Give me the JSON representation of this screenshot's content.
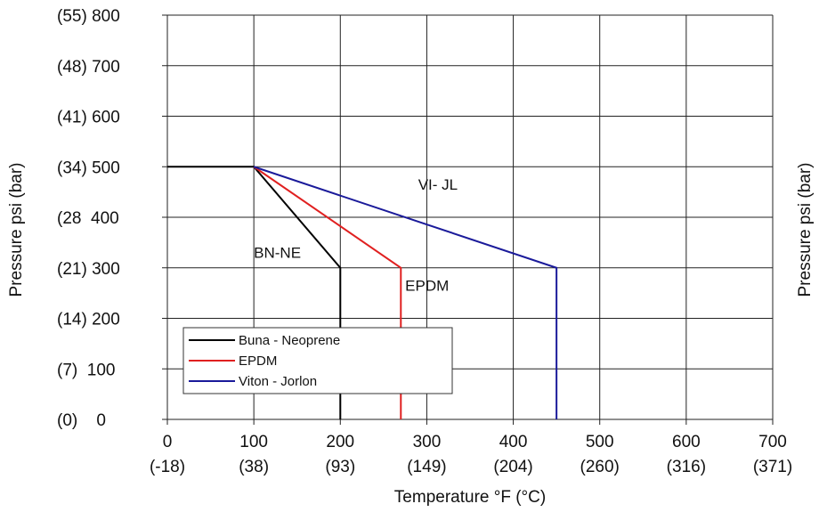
{
  "chart_data": {
    "type": "line",
    "xlabel": "Temperature °F (°C)",
    "ylabel": "Pressure psi (bar)",
    "xlim": [
      0,
      700
    ],
    "ylim": [
      0,
      800
    ],
    "x_ticks": [
      {
        "value": 0,
        "f": "0",
        "c": "(-18)"
      },
      {
        "value": 100,
        "f": "100",
        "c": "(38)"
      },
      {
        "value": 200,
        "f": "200",
        "c": "(93)"
      },
      {
        "value": 300,
        "f": "300",
        "c": "(149)"
      },
      {
        "value": 400,
        "f": "400",
        "c": "(204)"
      },
      {
        "value": 500,
        "f": "500",
        "c": "(260)"
      },
      {
        "value": 600,
        "f": "600",
        "c": "(316)"
      },
      {
        "value": 700,
        "f": "700",
        "c": "(371)"
      }
    ],
    "y_ticks": [
      {
        "value": 0,
        "label": "(0)    0"
      },
      {
        "value": 100,
        "label": "(7)  100"
      },
      {
        "value": 200,
        "label": "(14) 200"
      },
      {
        "value": 300,
        "label": "(21) 300"
      },
      {
        "value": 400,
        "label": "(28  400"
      },
      {
        "value": 500,
        "label": "(34) 500"
      },
      {
        "value": 600,
        "label": "(41) 600"
      },
      {
        "value": 700,
        "label": "(48) 700"
      },
      {
        "value": 800,
        "label": "(55) 800"
      }
    ],
    "grid": true,
    "legend_position": "bottom-left",
    "series": [
      {
        "name": "Buna - Neoprene",
        "color": "#000000",
        "points": [
          [
            0,
            500
          ],
          [
            100,
            500
          ],
          [
            200,
            300
          ],
          [
            200,
            0
          ]
        ]
      },
      {
        "name": "EPDM",
        "color": "#e02020",
        "points": [
          [
            100,
            500
          ],
          [
            270,
            300
          ],
          [
            270,
            0
          ]
        ]
      },
      {
        "name": "Viton - Jorlon",
        "color": "#1a1a9a",
        "points": [
          [
            100,
            500
          ],
          [
            450,
            300
          ],
          [
            450,
            0
          ]
        ]
      }
    ],
    "annotations": [
      {
        "text": "VI- JL",
        "x": 290,
        "y": 455
      },
      {
        "text": "BN-NE",
        "x": 100,
        "y": 320
      },
      {
        "text": "EPDM",
        "x": 275,
        "y": 255
      }
    ]
  }
}
